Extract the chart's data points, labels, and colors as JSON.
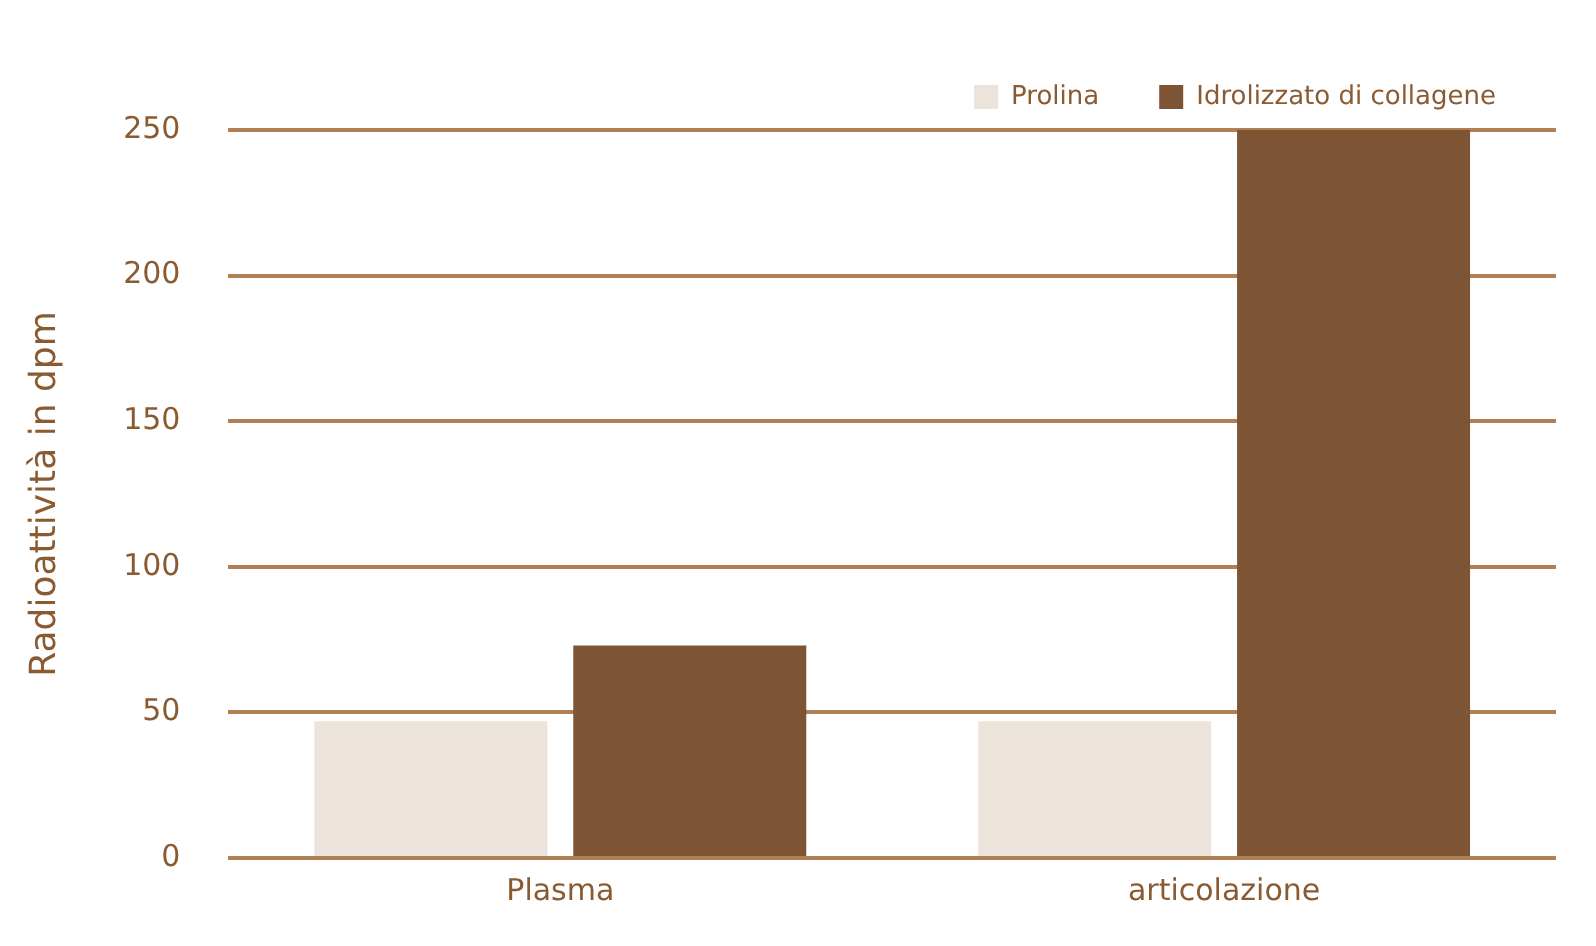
{
  "chart_data": {
    "type": "bar",
    "ylabel": "Radioattività in dpm",
    "categories": [
      "Plasma",
      "articolazione"
    ],
    "series": [
      {
        "name": "Prolina",
        "color": "#ece4da",
        "values": [
          47,
          47
        ]
      },
      {
        "name": "Idrolizzato di collagene",
        "color": "#7d5434",
        "values": [
          73,
          250
        ]
      }
    ],
    "ylim": [
      0,
      250
    ],
    "yticks": [
      0,
      50,
      100,
      150,
      200,
      250
    ],
    "grid": "y",
    "legend": "top right"
  }
}
